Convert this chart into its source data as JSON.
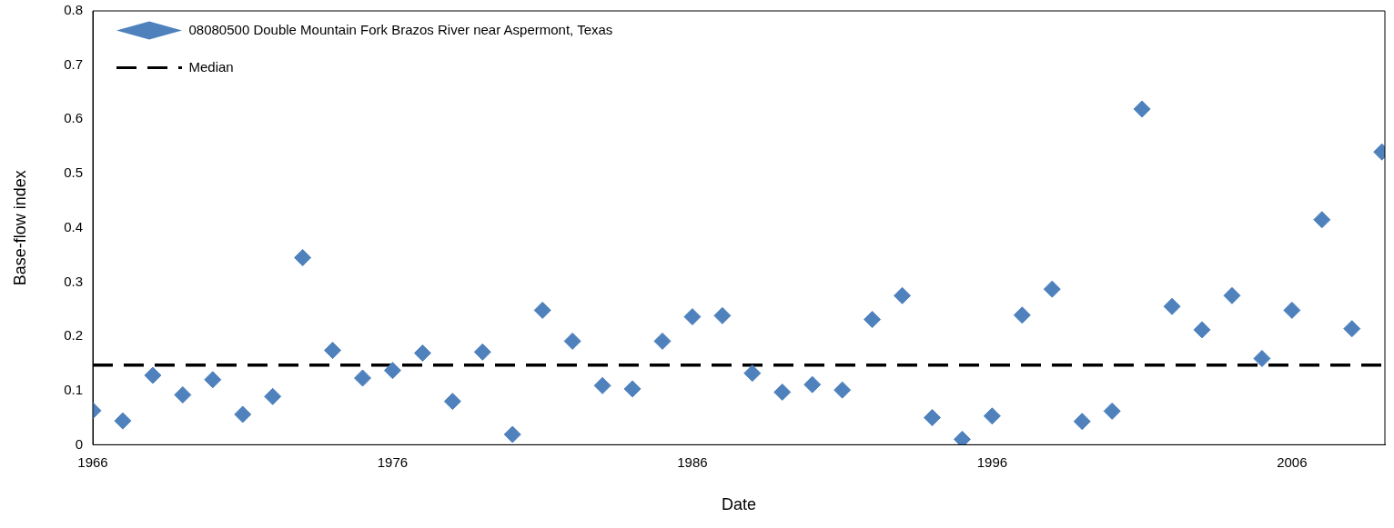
{
  "chart_data": {
    "type": "scatter",
    "xlabel": "Date",
    "ylabel": "Base-flow index",
    "x": [
      1966,
      1967,
      1968,
      1969,
      1970,
      1971,
      1972,
      1973,
      1974,
      1975,
      1976,
      1977,
      1978,
      1979,
      1980,
      1981,
      1982,
      1983,
      1984,
      1985,
      1986,
      1987,
      1988,
      1989,
      1990,
      1991,
      1992,
      1993,
      1994,
      1995,
      1996,
      1997,
      1998,
      1999,
      2000,
      2001,
      2002,
      2003,
      2004,
      2005,
      2006,
      2007,
      2008,
      2009
    ],
    "series": [
      {
        "name": "08080500 Double Mountain Fork Brazos River near Aspermont, Texas",
        "color": "#4f81bd",
        "values": [
          0.063,
          0.044,
          0.128,
          0.092,
          0.12,
          0.056,
          0.089,
          0.345,
          0.174,
          0.123,
          0.137,
          0.169,
          0.08,
          0.171,
          0.019,
          0.248,
          0.191,
          0.109,
          0.103,
          0.191,
          0.236,
          0.238,
          0.132,
          0.097,
          0.111,
          0.101,
          0.231,
          0.275,
          0.05,
          0.01,
          0.053,
          0.239,
          0.287,
          0.043,
          0.062,
          0.619,
          0.255,
          0.212,
          0.275,
          0.159,
          0.248,
          0.415,
          0.214,
          0.54
        ]
      }
    ],
    "ref_lines": [
      {
        "axis": "y",
        "value": 0.147,
        "label": "Median",
        "color": "#000000",
        "line_style": "dashed"
      }
    ],
    "xlim": [
      1966,
      2009.1
    ],
    "xticks": [
      1966,
      1976,
      1986,
      1996,
      2006
    ],
    "ylim": [
      0,
      0.8
    ],
    "yticks": [
      0,
      0.1,
      0.2,
      0.3,
      0.4,
      0.5,
      0.6,
      0.7,
      0.8
    ],
    "grid": false,
    "legend": "top left",
    "marker": "diamond"
  }
}
